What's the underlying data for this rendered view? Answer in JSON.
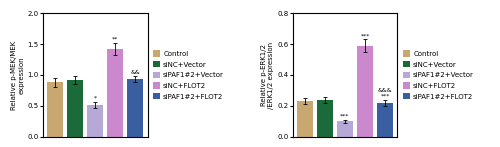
{
  "chart_data": [
    {
      "type": "bar",
      "ylabel": "Relative p-MEK/MEK\nexpression",
      "categories": [
        "Control",
        "siNC+Vector",
        "siPAF1#2+Vector",
        "siNC+FLOT2",
        "siPAF1#2+FLOT2"
      ],
      "values": [
        0.88,
        0.92,
        0.52,
        1.42,
        0.93
      ],
      "errors": [
        0.07,
        0.06,
        0.05,
        0.1,
        0.05
      ],
      "annotations": [
        null,
        null,
        "*",
        "**",
        "&&"
      ],
      "colors": [
        "#c8a870",
        "#1b6b3a",
        "#b8a8d8",
        "#cc88cc",
        "#3a5fa0"
      ],
      "ylim": [
        0,
        2.0
      ],
      "yticks": [
        0.0,
        0.5,
        1.0,
        1.5,
        2.0
      ],
      "tick_labels": "y",
      "legend": "right"
    },
    {
      "type": "bar",
      "ylabel": "Relative p-ERK1/2\n/ERK1/2 expression",
      "categories": [
        "Control",
        "siNC+Vector",
        "siPAF1#2+Vector",
        "siNC+FLOT2",
        "siPAF1#2+FLOT2"
      ],
      "values": [
        0.23,
        0.24,
        0.1,
        0.59,
        0.22
      ],
      "errors": [
        0.02,
        0.02,
        0.01,
        0.04,
        0.02
      ],
      "annotations": [
        null,
        null,
        "***",
        "***",
        "&&&\n***"
      ],
      "colors": [
        "#c8a870",
        "#1b6b3a",
        "#b8a8d8",
        "#cc88cc",
        "#3a5fa0"
      ],
      "ylim": [
        0,
        0.8
      ],
      "yticks": [
        0.0,
        0.2,
        0.4,
        0.6,
        0.8
      ],
      "tick_labels": "y",
      "legend": "right"
    }
  ]
}
